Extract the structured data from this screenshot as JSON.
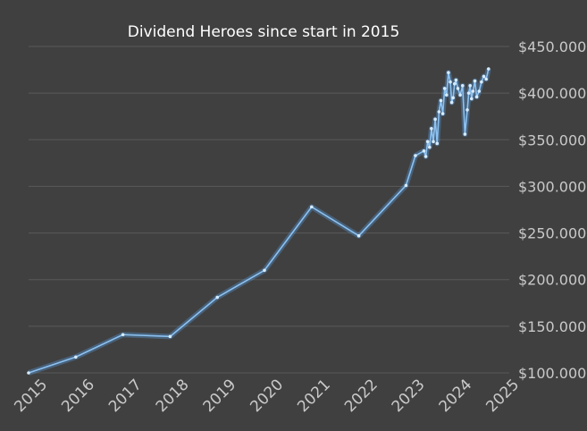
{
  "chart_data": {
    "type": "line",
    "title": "Dividend Heroes since start in 2015",
    "xlabel": "",
    "ylabel": "",
    "ylim": [
      100000,
      450000
    ],
    "xlim": [
      2015,
      2025
    ],
    "yticks": [
      100000,
      150000,
      200000,
      250000,
      300000,
      350000,
      400000,
      450000
    ],
    "ytick_labels": [
      "$100.000",
      "$150.000",
      "$200.000",
      "$250.000",
      "$300.000",
      "$350.000",
      "$400.000",
      "$450.000"
    ],
    "xtick_labels": [
      "2015",
      "2016",
      "2017",
      "2018",
      "2019",
      "2020",
      "2021",
      "2022",
      "2023",
      "2024",
      "2025"
    ],
    "grid": true,
    "legend": "none",
    "colors": {
      "background": "#404040",
      "line": "#8cc2f2",
      "grid": "#595959",
      "text": "#c9c9c9",
      "title": "#ffffff"
    },
    "series": [
      {
        "x": [
          2015.0,
          2016.0,
          2017.0,
          2018.0,
          2019.0,
          2020.0,
          2021.0,
          2022.0,
          2023.0,
          2023.2,
          2023.38,
          2023.42,
          2023.46,
          2023.5,
          2023.54,
          2023.58,
          2023.62,
          2023.66,
          2023.7,
          2023.74,
          2023.78,
          2023.82,
          2023.86,
          2023.9,
          2023.94,
          2023.97,
          2024.0,
          2024.03,
          2024.06,
          2024.1,
          2024.15,
          2024.2,
          2024.25,
          2024.3,
          2024.33,
          2024.36,
          2024.39,
          2024.42,
          2024.46,
          2024.5,
          2024.55,
          2024.6,
          2024.65,
          2024.7,
          2024.75
        ],
        "values": [
          100000,
          117000,
          141000,
          139000,
          181000,
          210000,
          278000,
          247000,
          301000,
          333000,
          338000,
          332000,
          348000,
          342000,
          362000,
          348000,
          372000,
          346000,
          380000,
          392000,
          378000,
          405000,
          398000,
          422000,
          412000,
          390000,
          395000,
          410000,
          414000,
          405000,
          398000,
          408000,
          356000,
          382000,
          400000,
          408000,
          394000,
          402000,
          413000,
          396000,
          402000,
          412000,
          418000,
          415000,
          426000
        ]
      }
    ]
  }
}
